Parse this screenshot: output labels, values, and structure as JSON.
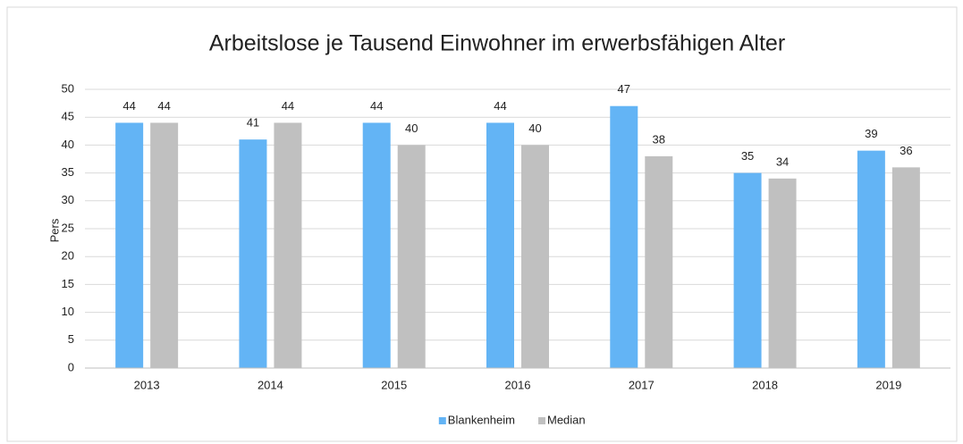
{
  "chart_data": {
    "type": "bar",
    "title": "Arbeitslose je Tausend Einwohner im erwerbsfähigen Alter",
    "y_label": "Pers",
    "categories": [
      "2013",
      "2014",
      "2015",
      "2016",
      "2017",
      "2018",
      "2019"
    ],
    "series": [
      {
        "name": "Blankenheim",
        "color": "#63b4f5",
        "values": [
          44,
          41,
          44,
          44,
          47,
          35,
          39
        ]
      },
      {
        "name": "Median",
        "color": "#c0c0c0",
        "values": [
          44,
          44,
          40,
          40,
          38,
          34,
          36
        ]
      }
    ],
    "ylim": [
      0,
      50
    ],
    "yticks": [
      0,
      5,
      10,
      15,
      20,
      25,
      30,
      35,
      40,
      45,
      50
    ],
    "grid": true,
    "legend": "bottom"
  }
}
